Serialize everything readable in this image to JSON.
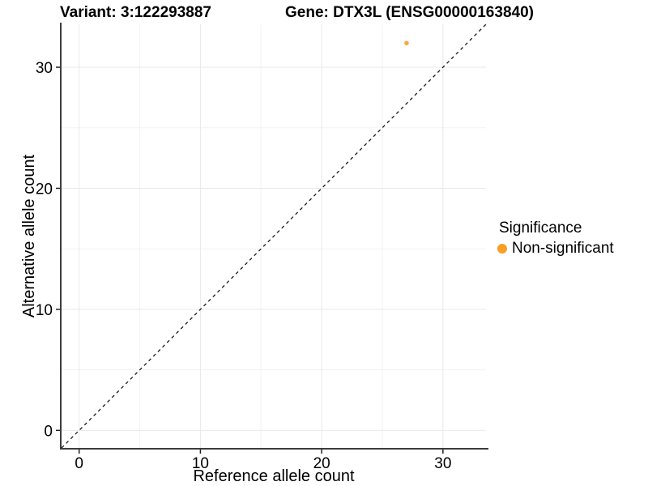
{
  "titles": {
    "variant": "Variant: 3:122293887",
    "gene": "Gene: DTX3L (ENSG00000163840)"
  },
  "chart_data": {
    "type": "scatter",
    "xlabel": "Reference allele count",
    "ylabel": "Alternative allele count",
    "xlim": [
      -1.45,
      33.55
    ],
    "ylim": [
      -1.45,
      33.55
    ],
    "xticks": [
      0,
      10,
      20,
      30
    ],
    "yticks": [
      0,
      10,
      20,
      30
    ],
    "minor_ticks": [
      5,
      15,
      25
    ],
    "grid": true,
    "identity_line": {
      "style": "dashed",
      "color": "#1a1a1a",
      "note": "y = x diagonal"
    },
    "points": [
      {
        "x": 27,
        "y": 32,
        "significance": "Non-significant"
      }
    ],
    "legend": {
      "title": "Significance",
      "position": "right",
      "items": [
        {
          "label": "Non-significant",
          "color": "#FB9E26"
        }
      ]
    }
  },
  "colors": {
    "background": "#ffffff",
    "grid_major": "#e9e9e9",
    "grid_minor": "#f3f3f3",
    "axis_line": "#3c3c3c",
    "tick_mark": "#222222",
    "text": "#000000",
    "point": "#FB9E26"
  }
}
